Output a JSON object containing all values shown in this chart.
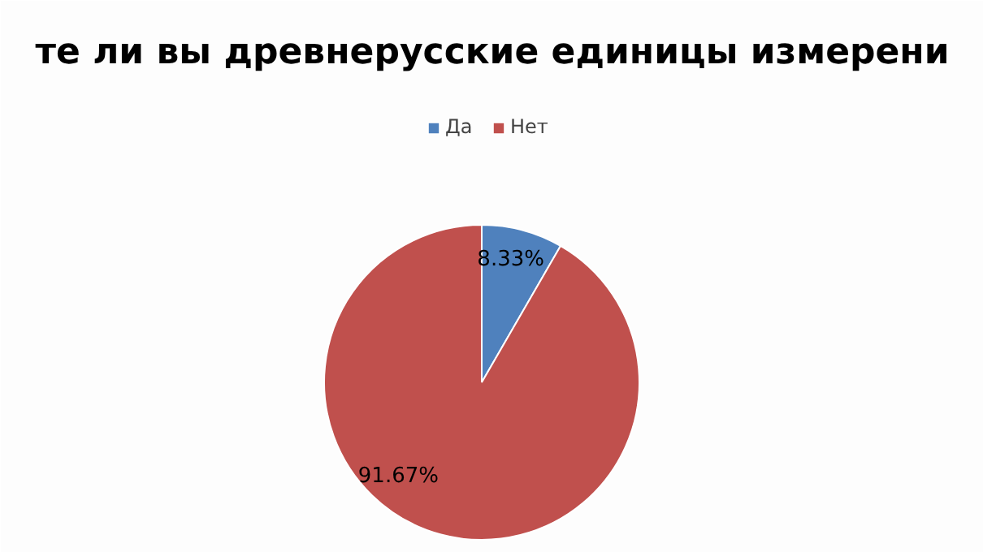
{
  "chart_data": {
    "type": "pie",
    "title": "те ли вы древнерусские единицы измерени",
    "categories": [
      "Да",
      "Нет"
    ],
    "values": [
      8.33,
      91.67
    ],
    "colors": [
      "#4f81bd",
      "#c0504d"
    ],
    "value_labels": [
      "8.33%",
      "91.67%"
    ],
    "legend": "top"
  }
}
